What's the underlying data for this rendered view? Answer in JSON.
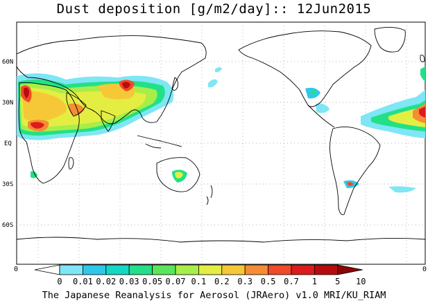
{
  "title": "Dust deposition [g/m2/day]:: 12Jun2015",
  "credit": "The Japanese Reanalysis for Aerosol (JRAero) v1.0 MRI/KU_RIAM",
  "lat_labels": [
    "60N",
    "30N",
    "EQ",
    "30S",
    "60S"
  ],
  "colorbar": {
    "left_edge_label": "0",
    "right_edge_label": "0",
    "ticks": [
      "0",
      "0.01",
      "0.02",
      "0.03",
      "0.05",
      "0.07",
      "0.1",
      "0.2",
      "0.3",
      "0.5",
      "0.7",
      "1",
      "5",
      "10"
    ],
    "colors": [
      "#ffffff",
      "#7ee6f4",
      "#2ec8ea",
      "#14d8c4",
      "#22e088",
      "#5ae65a",
      "#a8ee48",
      "#e4ee42",
      "#f6c838",
      "#f68c34",
      "#f04a28",
      "#dc1c1c",
      "#b80c0c",
      "#8c0404"
    ]
  },
  "colors": {
    "land_outline": "#000000",
    "grid": "#888888",
    "background": "#ffffff"
  }
}
